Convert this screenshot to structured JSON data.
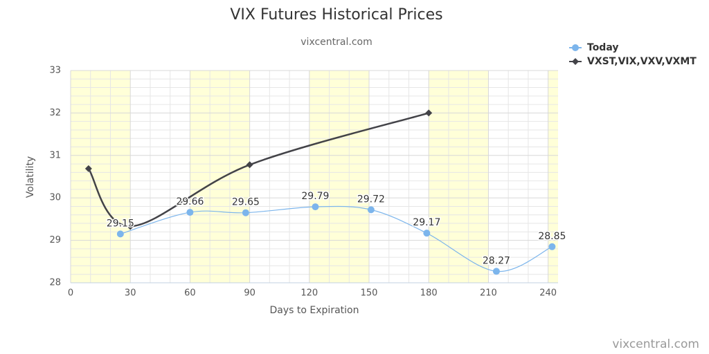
{
  "chart_data": {
    "type": "line",
    "title": "VIX Futures Historical Prices",
    "subtitle": "vixcentral.com",
    "credits": "vixcentral.com",
    "x_label": "Days to Expiration",
    "y_label": "Volatility",
    "xlim": [
      0,
      245
    ],
    "ylim": [
      28,
      33
    ],
    "xticks": [
      0,
      30,
      60,
      90,
      120,
      150,
      180,
      210,
      240
    ],
    "yticks": [
      28,
      29,
      30,
      31,
      32,
      33
    ],
    "grid": true,
    "legend": "top-right",
    "series": [
      {
        "name": "Today",
        "color": "#7cb5ec",
        "marker": "circle",
        "x": [
          25,
          60,
          88,
          123,
          151,
          179,
          214,
          242
        ],
        "values": [
          29.15,
          29.66,
          29.65,
          29.79,
          29.72,
          29.17,
          28.27,
          28.85
        ]
      },
      {
        "name": "VXST,VIX,VXV,VXMT",
        "color": "#434348",
        "marker": "diamond",
        "x": [
          9,
          30,
          90,
          180
        ],
        "values": [
          30.69,
          29.33,
          30.78,
          32.0
        ]
      }
    ]
  }
}
